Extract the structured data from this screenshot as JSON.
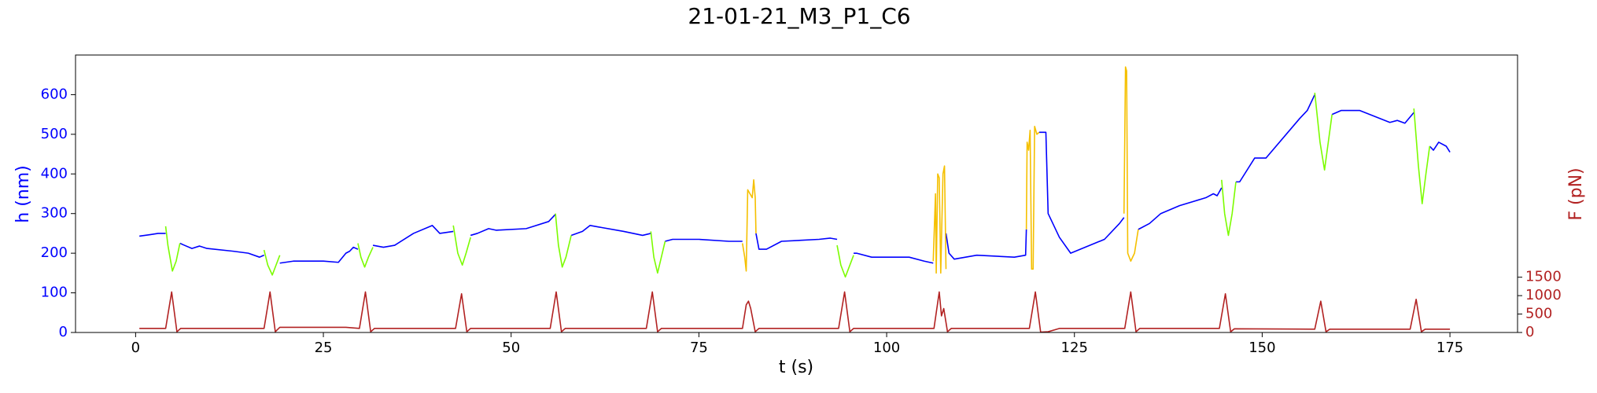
{
  "chart_data": {
    "type": "line",
    "title": "21-01-21_M3_P1_C6",
    "xlabel": "t (s)",
    "ylabel": "h (nm)",
    "y2label": "F (pN)",
    "y_color": "#0000ff",
    "y2_color": "#b22222",
    "xlim": [
      -8,
      184
    ],
    "xticks": [
      0,
      25,
      50,
      75,
      100,
      125,
      150,
      175
    ],
    "ylim": [
      0,
      700
    ],
    "yticks": [
      0,
      100,
      200,
      300,
      400,
      500,
      600
    ],
    "y2lim": [
      0,
      7530
    ],
    "y2ticks": [
      0,
      500,
      1000,
      1500
    ],
    "series": [
      {
        "color": "#0000ff",
        "x": [
          0.5,
          2,
          3,
          4,
          null,
          5.9,
          6.5,
          7.5,
          8.5,
          9.5,
          13,
          15,
          16.5,
          17.1,
          null,
          19.2,
          21,
          25,
          27,
          28,
          28.5,
          29,
          29.6,
          null,
          31.6,
          33,
          34.5,
          37,
          39.5,
          40.5,
          42.3,
          null,
          44.6,
          45.5,
          47,
          48,
          52,
          53,
          55,
          55.9,
          null,
          58,
          59.5,
          60.5,
          62,
          65,
          67.5,
          68.6,
          null,
          70.5,
          71.5,
          75,
          79,
          80.8,
          null,
          82.6,
          83,
          84,
          86,
          91,
          92.5,
          93.4,
          null,
          95.6,
          96,
          98,
          103,
          105,
          106.2,
          null,
          107.9,
          108.3,
          109,
          112,
          117,
          118.5,
          118.6,
          null,
          120.3,
          121.2,
          121.5,
          123,
          124.5,
          129,
          131,
          131.6,
          null,
          133.5,
          135,
          136.5,
          139,
          142.5,
          143.5,
          144,
          144.6,
          null,
          146.5,
          147,
          149,
          150.5,
          155,
          156,
          157,
          null,
          159.3,
          160.5,
          163,
          167,
          168,
          169,
          170.2,
          null,
          172.3,
          172.8,
          173.5,
          174.5,
          175
        ],
        "values": [
          243,
          247,
          250,
          250,
          null,
          225,
          220,
          212,
          218,
          212,
          205,
          200,
          190,
          195,
          null,
          175,
          180,
          180,
          177,
          200,
          205,
          215,
          210,
          null,
          220,
          215,
          220,
          250,
          270,
          250,
          255,
          null,
          245,
          250,
          262,
          258,
          262,
          268,
          280,
          298,
          null,
          245,
          255,
          270,
          265,
          255,
          245,
          250,
          null,
          230,
          235,
          235,
          230,
          230,
          null,
          250,
          210,
          210,
          230,
          235,
          238,
          235,
          null,
          200,
          200,
          190,
          190,
          180,
          175,
          null,
          250,
          200,
          185,
          195,
          190,
          195,
          260,
          null,
          505,
          505,
          300,
          240,
          200,
          235,
          275,
          290,
          null,
          260,
          275,
          300,
          320,
          340,
          350,
          345,
          365,
          null,
          380,
          380,
          440,
          440,
          540,
          560,
          600,
          null,
          550,
          560,
          560,
          530,
          535,
          528,
          555,
          null,
          470,
          460,
          480,
          470,
          455
        ]
      },
      {
        "color": "#7cfc00",
        "x": [
          4,
          4.3,
          4.9,
          5.4,
          5.9,
          null,
          17.1,
          17.6,
          18.2,
          18.7,
          19.2,
          null,
          29.6,
          30,
          30.5,
          31,
          31.6,
          null,
          42.3,
          42.9,
          43.5,
          44,
          44.6,
          null,
          55.9,
          56.3,
          56.8,
          57.3,
          58,
          null,
          68.6,
          69,
          69.5,
          70,
          70.5,
          null,
          93.4,
          93.9,
          94.5,
          95,
          95.6,
          null,
          144.6,
          145,
          145.5,
          146,
          146.5,
          null,
          157,
          157.7,
          158.3,
          158.8,
          159.3,
          null,
          170.2,
          170.8,
          171.3,
          171.8,
          172.3
        ],
        "values": [
          268,
          220,
          155,
          180,
          225,
          null,
          208,
          170,
          145,
          170,
          195,
          null,
          225,
          190,
          165,
          190,
          215,
          null,
          270,
          200,
          170,
          200,
          240,
          null,
          300,
          220,
          165,
          190,
          245,
          null,
          255,
          190,
          150,
          190,
          230,
          null,
          220,
          170,
          140,
          165,
          195,
          null,
          385,
          300,
          245,
          300,
          380,
          null,
          605,
          480,
          410,
          480,
          550,
          null,
          565,
          420,
          325,
          400,
          470
        ]
      },
      {
        "color": "#f5c000",
        "x": [
          80.8,
          81.1,
          81.3,
          81.5,
          81.8,
          82.1,
          82.3,
          82.5,
          82.6,
          null,
          106.2,
          106.5,
          106.6,
          106.8,
          107,
          107.2,
          107.5,
          107.7,
          107.9,
          null,
          118.6,
          118.7,
          118.9,
          119.1,
          119.3,
          119.5,
          119.7,
          120,
          120.3,
          null,
          131.6,
          131.8,
          131.95,
          132.1,
          132.5,
          133,
          133.5
        ],
        "values": [
          225,
          190,
          155,
          360,
          350,
          340,
          385,
          340,
          250,
          null,
          180,
          350,
          150,
          400,
          390,
          150,
          400,
          420,
          160,
          null,
          260,
          480,
          460,
          510,
          160,
          160,
          520,
          500,
          505,
          null,
          300,
          670,
          660,
          200,
          180,
          200,
          260
        ]
      },
      {
        "color": "#b22222",
        "axis": "y2",
        "x": [
          0.5,
          4,
          4.8,
          5.5,
          6,
          17.1,
          17.9,
          18.6,
          19.2,
          28,
          29.8,
          30.6,
          31.3,
          31.8,
          42.6,
          43.4,
          44.1,
          44.6,
          55.2,
          56,
          56.7,
          57.2,
          68,
          68.8,
          69.5,
          70,
          80.8,
          81.3,
          81.6,
          81.9,
          82.5,
          83,
          93.6,
          94.4,
          95.1,
          95.6,
          106.3,
          107,
          107.3,
          107.6,
          108.1,
          108.6,
          119,
          119.8,
          120.5,
          121.5,
          123,
          131.7,
          132.5,
          133.2,
          133.7,
          144.3,
          145.1,
          145.8,
          146.3,
          157,
          157.8,
          158.5,
          159,
          169.7,
          170.5,
          171.2,
          171.7,
          175
        ],
        "values": [
          110,
          110,
          1100,
          20,
          110,
          110,
          1100,
          20,
          140,
          140,
          110,
          1100,
          20,
          110,
          110,
          1050,
          20,
          110,
          110,
          1100,
          20,
          110,
          110,
          1100,
          20,
          110,
          110,
          750,
          850,
          650,
          20,
          110,
          110,
          1100,
          20,
          110,
          110,
          1100,
          450,
          650,
          20,
          110,
          110,
          1100,
          10,
          20,
          110,
          110,
          1100,
          20,
          110,
          110,
          1050,
          20,
          100,
          90,
          850,
          20,
          90,
          90,
          900,
          20,
          90,
          90
        ]
      }
    ]
  }
}
